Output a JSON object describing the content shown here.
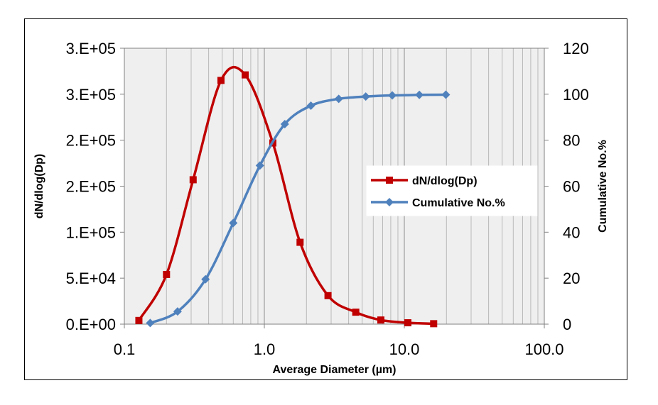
{
  "chart_data": {
    "type": "line",
    "xlabel": "Average Diameter (µm)",
    "ylabel": "dN/dlog(Dp)",
    "y2label": "Cumulative No.%",
    "xscale": "log",
    "xlim": [
      0.1,
      100
    ],
    "ylim": [
      0,
      300000
    ],
    "y2lim": [
      0,
      120
    ],
    "x_ticks": [
      0.1,
      1,
      10,
      100
    ],
    "x_tick_labels": [
      "0.1",
      "1.0",
      "10.0",
      "100.0"
    ],
    "y_ticks": [
      0,
      50000,
      100000,
      150000,
      200000,
      250000,
      300000
    ],
    "y_tick_labels": [
      "0.E+00",
      "5.E+04",
      "1.E+05",
      "2.E+05",
      "2.E+05",
      "3.E+05",
      "3.E+05"
    ],
    "y2_ticks": [
      0,
      20,
      40,
      60,
      80,
      100,
      120
    ],
    "y2_tick_labels": [
      "0",
      "20",
      "40",
      "60",
      "80",
      "100",
      "120"
    ],
    "grid": "vertical",
    "legend_position": "right",
    "series": [
      {
        "name": "dN/dlog(Dp)",
        "axis": "left",
        "color": "#C00000",
        "marker": "square",
        "x": [
          0.127,
          0.2,
          0.31,
          0.49,
          0.73,
          1.15,
          1.8,
          2.85,
          4.5,
          6.8,
          10.6,
          16.2
        ],
        "y": [
          4000,
          54000,
          157000,
          265000,
          271000,
          197000,
          89000,
          31000,
          13000,
          4500,
          1500,
          500
        ]
      },
      {
        "name": "Cumulative No.%",
        "axis": "right",
        "color": "#4F81BD",
        "marker": "diamond",
        "x": [
          0.153,
          0.24,
          0.38,
          0.6,
          0.93,
          1.4,
          2.15,
          3.4,
          5.3,
          8.2,
          12.8,
          19.8
        ],
        "y": [
          0.5,
          5.5,
          19.5,
          44,
          69,
          87,
          95,
          98,
          99,
          99.5,
          99.7,
          99.8
        ]
      }
    ]
  }
}
